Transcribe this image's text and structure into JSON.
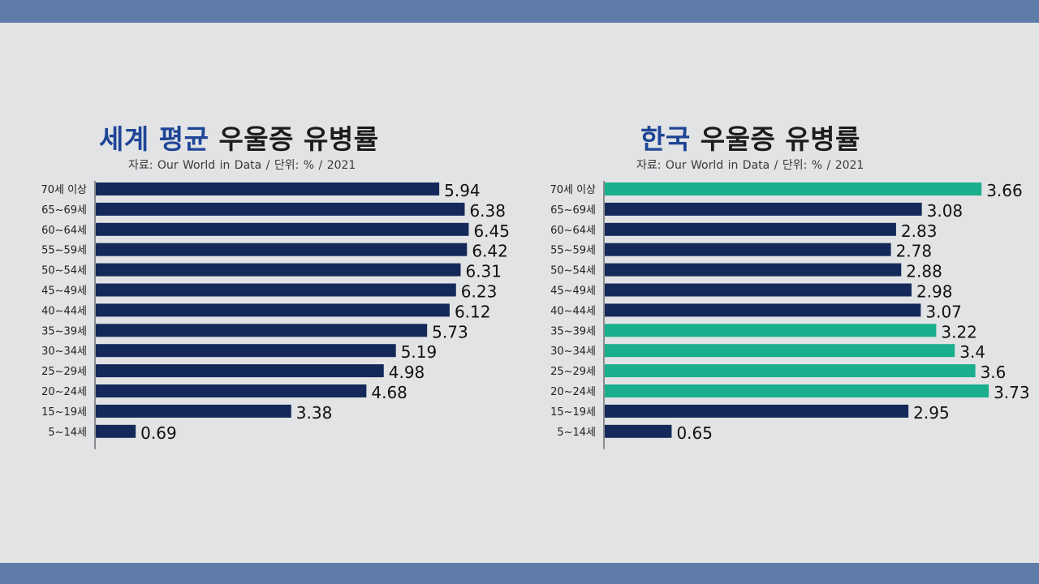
{
  "colors": {
    "band": "#5f7ba8",
    "background": "#e1e3e5",
    "bar_navy": "#14295a",
    "bar_green": "#1aaf8c",
    "title_accent": "#1f4597"
  },
  "chart_data": [
    {
      "type": "bar",
      "orientation": "horizontal",
      "title_accent": "세계 평균",
      "title_rest": "우울증 유병률",
      "subtitle": "자료: Our World in Data  /  단위: %  /  2021",
      "categories": [
        "70세 이상",
        "65~69세",
        "60~64세",
        "55~59세",
        "50~54세",
        "45~49세",
        "40~44세",
        "35~39세",
        "30~34세",
        "25~29세",
        "20~24세",
        "15~19세",
        "5~14세"
      ],
      "values": [
        5.94,
        6.38,
        6.45,
        6.42,
        6.31,
        6.23,
        6.12,
        5.73,
        5.19,
        4.98,
        4.68,
        3.38,
        0.69
      ],
      "value_labels": [
        "5.94",
        "6.38",
        "6.45",
        "6.42",
        "6.31",
        "6.23",
        "6.12",
        "5.73",
        "5.19",
        "4.98",
        "4.68",
        "3.38",
        "0.69"
      ],
      "highlight": [
        false,
        false,
        false,
        false,
        false,
        false,
        false,
        false,
        false,
        false,
        false,
        false,
        false
      ],
      "xlim": [
        0,
        7.3
      ]
    },
    {
      "type": "bar",
      "orientation": "horizontal",
      "title_accent": "한국",
      "title_rest": "우울증 유병률",
      "subtitle": "자료: Our World in Data  /  단위: %  /  2021",
      "categories": [
        "70세 이상",
        "65~69세",
        "60~64세",
        "55~59세",
        "50~54세",
        "45~49세",
        "40~44세",
        "35~39세",
        "30~34세",
        "25~29세",
        "20~24세",
        "15~19세",
        "5~14세"
      ],
      "values": [
        3.66,
        3.08,
        2.83,
        2.78,
        2.88,
        2.98,
        3.07,
        3.22,
        3.4,
        3.6,
        3.73,
        2.95,
        0.65
      ],
      "value_labels": [
        "3.66",
        "3.08",
        "2.83",
        "2.78",
        "2.88",
        "2.98",
        "3.07",
        "3.22",
        "3.4",
        "3.6",
        "3.73",
        "2.95",
        "0.65"
      ],
      "highlight": [
        true,
        false,
        false,
        false,
        false,
        false,
        false,
        true,
        true,
        true,
        true,
        false,
        false
      ],
      "xlim": [
        0,
        4.1
      ]
    }
  ]
}
